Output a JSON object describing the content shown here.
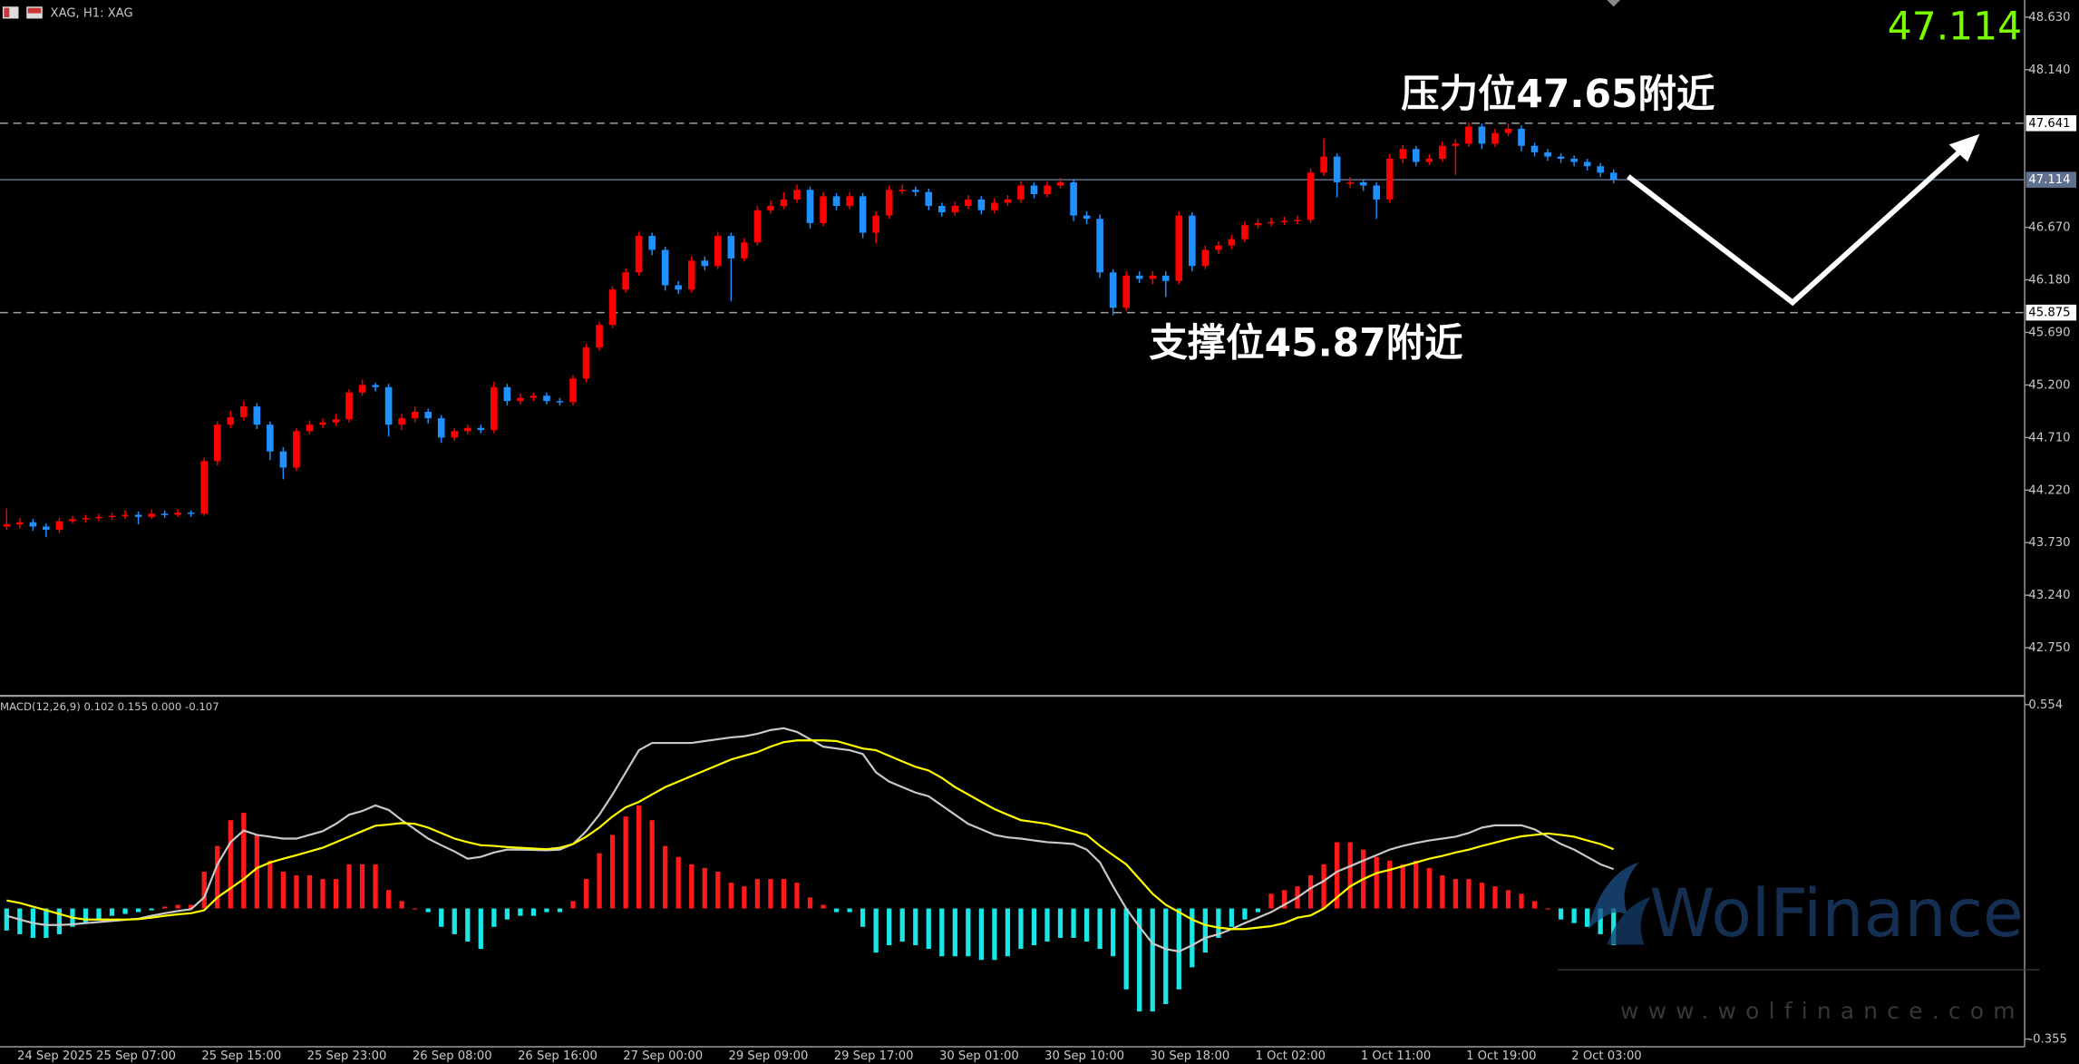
{
  "header": "XAG, H1: XAG",
  "last_price": 47.114,
  "watermark": {
    "brand": "WolFinance",
    "url": "www.wolfinance.com"
  },
  "chart_data": [
    {
      "type": "candlestick",
      "up_color": "#ff0000",
      "down_color": "#1e90ff",
      "ylim": [
        42.32,
        48.79
      ],
      "yticks": [
        {
          "value": 48.63,
          "label": "48.630"
        },
        {
          "value": 48.14,
          "label": "48.140"
        },
        {
          "value": 46.67,
          "label": "46.670"
        },
        {
          "value": 46.18,
          "label": "46.180"
        },
        {
          "value": 45.69,
          "label": "45.690"
        },
        {
          "value": 45.2,
          "label": "45.200"
        },
        {
          "value": 44.71,
          "label": "44.710"
        },
        {
          "value": 44.22,
          "label": "44.220"
        },
        {
          "value": 43.73,
          "label": "43.730"
        },
        {
          "value": 43.24,
          "label": "43.240"
        },
        {
          "value": 42.75,
          "label": "42.750"
        }
      ],
      "levels": [
        {
          "price": 47.641,
          "text": "压力位47.65附近"
        },
        {
          "price": 45.875,
          "text": "支撑位45.87附近"
        }
      ],
      "categories": [
        "24 Sep 2025",
        null,
        null,
        null,
        null,
        null,
        "25 Sep 07:00",
        null,
        null,
        null,
        null,
        null,
        null,
        null,
        "25 Sep 15:00",
        null,
        null,
        null,
        null,
        null,
        null,
        null,
        "25 Sep 23:00",
        null,
        null,
        null,
        null,
        null,
        null,
        null,
        "26 Sep 08:00",
        null,
        null,
        null,
        null,
        null,
        null,
        null,
        "26 Sep 16:00",
        null,
        null,
        null,
        null,
        null,
        null,
        null,
        "27 Sep 00:00",
        null,
        null,
        null,
        null,
        null,
        null,
        null,
        "29 Sep 09:00",
        null,
        null,
        null,
        null,
        null,
        null,
        null,
        "29 Sep 17:00",
        null,
        null,
        null,
        null,
        null,
        null,
        null,
        "30 Sep 01:00",
        null,
        null,
        null,
        null,
        null,
        null,
        null,
        "30 Sep 10:00",
        null,
        null,
        null,
        null,
        null,
        null,
        null,
        "30 Sep 18:00",
        null,
        null,
        null,
        null,
        null,
        null,
        null,
        "1 Oct 02:00",
        null,
        null,
        null,
        null,
        null,
        null,
        null,
        "1 Oct 11:00",
        null,
        null,
        null,
        null,
        null,
        null,
        null,
        "1 Oct 19:00",
        null,
        null,
        null,
        null,
        null,
        null,
        null,
        "2 Oct 03:00",
        null,
        null,
        null,
        null
      ],
      "open": [
        43.88,
        43.9,
        43.92,
        43.88,
        43.85,
        43.93,
        43.95,
        43.96,
        43.97,
        43.98,
        43.99,
        43.97,
        44.0,
        43.99,
        44.01,
        44.0,
        44.49,
        44.83,
        44.9,
        45.0,
        44.83,
        44.58,
        44.43,
        44.77,
        44.83,
        44.85,
        44.88,
        45.13,
        45.2,
        45.18,
        44.83,
        44.89,
        44.95,
        44.89,
        44.71,
        44.77,
        44.8,
        44.78,
        45.18,
        45.05,
        45.08,
        45.1,
        45.05,
        45.04,
        45.26,
        45.55,
        45.76,
        46.09,
        46.25,
        46.59,
        46.46,
        46.13,
        46.09,
        46.36,
        46.31,
        46.59,
        46.38,
        46.53,
        46.83,
        46.87,
        46.93,
        47.02,
        46.71,
        46.96,
        46.87,
        46.96,
        46.62,
        46.78,
        47.02,
        47.02,
        47.0,
        46.87,
        46.81,
        46.87,
        46.93,
        46.83,
        46.9,
        46.93,
        47.06,
        46.98,
        47.06,
        47.09,
        46.78,
        46.75,
        46.25,
        45.92,
        46.22,
        46.19,
        46.22,
        46.17,
        46.78,
        46.31,
        46.46,
        46.5,
        46.56,
        46.69,
        46.71,
        46.72,
        46.73,
        46.74,
        47.18,
        47.33,
        47.09,
        47.09,
        47.06,
        46.93,
        47.31,
        47.4,
        47.28,
        47.31,
        47.43,
        47.45,
        47.61,
        47.45,
        47.55,
        47.59,
        47.43,
        47.37,
        47.33,
        47.31,
        47.28,
        47.24,
        47.18
      ],
      "high": [
        44.05,
        43.96,
        43.95,
        43.91,
        43.96,
        43.98,
        43.99,
        44.0,
        44.01,
        44.03,
        44.02,
        44.04,
        44.03,
        44.04,
        44.03,
        44.52,
        44.86,
        44.96,
        45.05,
        45.03,
        44.86,
        44.62,
        44.8,
        44.87,
        44.89,
        44.93,
        45.16,
        45.25,
        45.22,
        45.21,
        44.93,
        45.0,
        44.98,
        44.92,
        44.8,
        44.83,
        44.83,
        45.23,
        45.21,
        45.12,
        45.13,
        45.13,
        45.08,
        45.29,
        45.58,
        45.79,
        46.12,
        46.29,
        46.63,
        46.62,
        46.49,
        46.17,
        46.4,
        46.4,
        46.63,
        46.62,
        46.57,
        46.87,
        46.92,
        47.0,
        47.07,
        47.05,
        47.0,
        46.99,
        47.0,
        46.99,
        46.82,
        47.06,
        47.07,
        47.05,
        47.03,
        46.9,
        46.91,
        46.97,
        46.96,
        46.94,
        46.97,
        47.1,
        47.09,
        47.1,
        47.13,
        47.12,
        46.82,
        46.79,
        46.28,
        46.26,
        46.26,
        46.26,
        46.26,
        46.82,
        46.81,
        46.5,
        46.54,
        46.6,
        46.73,
        46.75,
        46.76,
        46.77,
        46.78,
        47.22,
        47.5,
        47.36,
        47.14,
        47.12,
        47.09,
        47.35,
        47.44,
        47.43,
        47.35,
        47.47,
        47.49,
        47.65,
        47.64,
        47.59,
        47.64,
        47.62,
        47.46,
        47.4,
        47.36,
        47.34,
        47.31,
        47.27,
        47.21
      ],
      "low": [
        43.85,
        43.86,
        43.84,
        43.78,
        43.82,
        43.91,
        43.92,
        43.93,
        43.94,
        43.95,
        43.9,
        43.95,
        43.96,
        43.97,
        43.97,
        43.98,
        44.45,
        44.8,
        44.87,
        44.79,
        44.5,
        44.32,
        44.4,
        44.74,
        44.8,
        44.82,
        44.85,
        45.1,
        45.14,
        44.72,
        44.78,
        44.85,
        44.84,
        44.66,
        44.68,
        44.74,
        44.75,
        44.75,
        45.01,
        45.02,
        45.05,
        45.02,
        45.01,
        45.01,
        45.23,
        45.52,
        45.73,
        46.06,
        46.22,
        46.41,
        46.08,
        46.05,
        46.06,
        46.27,
        46.28,
        45.98,
        46.35,
        46.5,
        46.8,
        46.84,
        46.9,
        46.66,
        46.68,
        46.83,
        46.84,
        46.57,
        46.52,
        46.75,
        46.98,
        46.96,
        46.83,
        46.77,
        46.78,
        46.84,
        46.79,
        46.8,
        46.87,
        46.9,
        46.94,
        46.95,
        47.03,
        46.73,
        46.7,
        46.2,
        45.85,
        45.89,
        46.15,
        46.14,
        46.02,
        46.14,
        46.26,
        46.28,
        46.42,
        46.47,
        46.53,
        46.66,
        46.68,
        46.69,
        46.7,
        46.71,
        47.15,
        46.95,
        47.04,
        47.01,
        46.75,
        46.9,
        47.27,
        47.24,
        47.25,
        47.28,
        47.16,
        47.42,
        47.4,
        47.42,
        47.52,
        47.38,
        47.33,
        47.29,
        47.27,
        47.24,
        47.2,
        47.14,
        47.08
      ],
      "close": [
        43.9,
        43.92,
        43.88,
        43.85,
        43.93,
        43.95,
        43.96,
        43.97,
        43.98,
        43.99,
        43.97,
        44.0,
        43.99,
        44.01,
        44.0,
        44.49,
        44.83,
        44.9,
        45.0,
        44.83,
        44.58,
        44.43,
        44.77,
        44.83,
        44.85,
        44.88,
        45.13,
        45.2,
        45.18,
        44.83,
        44.89,
        44.95,
        44.89,
        44.71,
        44.77,
        44.8,
        44.78,
        45.18,
        45.05,
        45.08,
        45.1,
        45.05,
        45.04,
        45.26,
        45.55,
        45.76,
        46.09,
        46.25,
        46.59,
        46.46,
        46.13,
        46.09,
        46.36,
        46.31,
        46.59,
        46.38,
        46.53,
        46.83,
        46.87,
        46.93,
        47.02,
        46.71,
        46.96,
        46.87,
        46.96,
        46.62,
        46.78,
        47.02,
        47.02,
        47.0,
        46.87,
        46.81,
        46.87,
        46.93,
        46.83,
        46.9,
        46.93,
        47.06,
        46.98,
        47.06,
        47.09,
        46.78,
        46.75,
        46.25,
        45.92,
        46.22,
        46.19,
        46.22,
        46.17,
        46.78,
        46.31,
        46.46,
        46.5,
        46.56,
        46.69,
        46.71,
        46.72,
        46.73,
        46.74,
        47.18,
        47.33,
        47.09,
        47.09,
        47.06,
        46.93,
        47.31,
        47.4,
        47.28,
        47.31,
        47.43,
        47.45,
        47.61,
        47.45,
        47.55,
        47.59,
        47.43,
        47.37,
        47.33,
        47.31,
        47.28,
        47.24,
        47.18,
        47.114
      ]
    },
    {
      "type": "macd",
      "title": "MACD(12,26,9) 0.102 0.155 0.000 -0.107",
      "ylim": [
        -0.376,
        0.569
      ],
      "yticks": [
        0.554,
        -0.355
      ],
      "histogram": {
        "up_color": "#ff1a1a",
        "down_color": "#19e6e6",
        "values": [
          -0.06,
          -0.07,
          -0.08,
          -0.08,
          -0.07,
          -0.05,
          -0.04,
          -0.03,
          -0.02,
          -0.015,
          -0.01,
          -0.005,
          0.005,
          0.01,
          0.01,
          0.1,
          0.17,
          0.24,
          0.26,
          0.2,
          0.13,
          0.1,
          0.09,
          0.09,
          0.08,
          0.08,
          0.12,
          0.12,
          0.12,
          0.05,
          0.02,
          0,
          -0.01,
          -0.05,
          -0.07,
          -0.09,
          -0.11,
          -0.05,
          -0.03,
          -0.02,
          -0.02,
          -0.01,
          -0.01,
          0.02,
          0.08,
          0.15,
          0.2,
          0.25,
          0.28,
          0.24,
          0.17,
          0.14,
          0.12,
          0.11,
          0.1,
          0.07,
          0.06,
          0.08,
          0.08,
          0.08,
          0.07,
          0.03,
          0.01,
          -0.01,
          -0.01,
          -0.05,
          -0.12,
          -0.1,
          -0.09,
          -0.1,
          -0.11,
          -0.13,
          -0.13,
          -0.13,
          -0.14,
          -0.14,
          -0.13,
          -0.11,
          -0.1,
          -0.09,
          -0.08,
          -0.08,
          -0.09,
          -0.11,
          -0.13,
          -0.22,
          -0.28,
          -0.28,
          -0.26,
          -0.22,
          -0.16,
          -0.12,
          -0.08,
          -0.05,
          -0.03,
          -0.01,
          0.04,
          0.05,
          0.06,
          0.09,
          0.12,
          0.18,
          0.18,
          0.16,
          0.14,
          0.13,
          0.12,
          0.13,
          0.11,
          0.09,
          0.08,
          0.08,
          0.07,
          0.06,
          0.05,
          0.04,
          0.02,
          0,
          -0.03,
          -0.04,
          -0.05,
          -0.07,
          -0.1
        ]
      },
      "lines": [
        {
          "color": "#c8c8c8",
          "values": [
            -0.02,
            -0.03,
            -0.04,
            -0.045,
            -0.045,
            -0.043,
            -0.04,
            -0.037,
            -0.034,
            -0.031,
            -0.028,
            -0.02,
            -0.013,
            -0.007,
            -0.002,
            0.03,
            0.12,
            0.18,
            0.212,
            0.2,
            0.195,
            0.19,
            0.19,
            0.2,
            0.21,
            0.23,
            0.255,
            0.265,
            0.28,
            0.268,
            0.24,
            0.215,
            0.19,
            0.172,
            0.155,
            0.135,
            0.14,
            0.152,
            0.16,
            0.16,
            0.159,
            0.158,
            0.16,
            0.175,
            0.21,
            0.255,
            0.31,
            0.37,
            0.43,
            0.45,
            0.45,
            0.45,
            0.45,
            0.455,
            0.46,
            0.465,
            0.468,
            0.475,
            0.485,
            0.49,
            0.48,
            0.46,
            0.44,
            0.435,
            0.43,
            0.42,
            0.37,
            0.345,
            0.33,
            0.315,
            0.305,
            0.28,
            0.255,
            0.23,
            0.215,
            0.2,
            0.193,
            0.19,
            0.185,
            0.18,
            0.178,
            0.175,
            0.16,
            0.125,
            0.06,
            0,
            -0.05,
            -0.095,
            -0.11,
            -0.117,
            -0.1,
            -0.08,
            -0.07,
            -0.056,
            -0.04,
            -0.025,
            -0.01,
            0.01,
            0.03,
            0.055,
            0.075,
            0.1,
            0.115,
            0.13,
            0.145,
            0.16,
            0.17,
            0.178,
            0.185,
            0.19,
            0.195,
            0.205,
            0.22,
            0.226,
            0.226,
            0.226,
            0.215,
            0.195,
            0.175,
            0.16,
            0.14,
            0.12,
            0.107
          ]
        },
        {
          "color": "#ffff00",
          "values": [
            0.022,
            0.015,
            0.005,
            -0.005,
            -0.015,
            -0.025,
            -0.03,
            -0.03,
            -0.03,
            -0.03,
            -0.029,
            -0.025,
            -0.02,
            -0.016,
            -0.013,
            -0.005,
            0.03,
            0.055,
            0.08,
            0.11,
            0.125,
            0.135,
            0.145,
            0.155,
            0.165,
            0.18,
            0.195,
            0.21,
            0.225,
            0.228,
            0.232,
            0.23,
            0.22,
            0.205,
            0.19,
            0.18,
            0.172,
            0.17,
            0.167,
            0.165,
            0.163,
            0.161,
            0.165,
            0.175,
            0.195,
            0.22,
            0.25,
            0.275,
            0.29,
            0.31,
            0.33,
            0.345,
            0.36,
            0.375,
            0.39,
            0.405,
            0.415,
            0.425,
            0.44,
            0.452,
            0.457,
            0.457,
            0.457,
            0.455,
            0.445,
            0.435,
            0.43,
            0.415,
            0.4,
            0.385,
            0.375,
            0.355,
            0.33,
            0.31,
            0.29,
            0.27,
            0.255,
            0.24,
            0.235,
            0.23,
            0.22,
            0.21,
            0.2,
            0.17,
            0.145,
            0.12,
            0.08,
            0.04,
            0.01,
            -0.01,
            -0.03,
            -0.045,
            -0.052,
            -0.056,
            -0.056,
            -0.052,
            -0.048,
            -0.04,
            -0.025,
            -0.019,
            0,
            0.03,
            0.06,
            0.08,
            0.096,
            0.105,
            0.115,
            0.125,
            0.135,
            0.143,
            0.152,
            0.16,
            0.17,
            0.179,
            0.188,
            0.196,
            0.2,
            0.204,
            0.2,
            0.195,
            0.185,
            0.175,
            0.161
          ]
        }
      ]
    }
  ]
}
